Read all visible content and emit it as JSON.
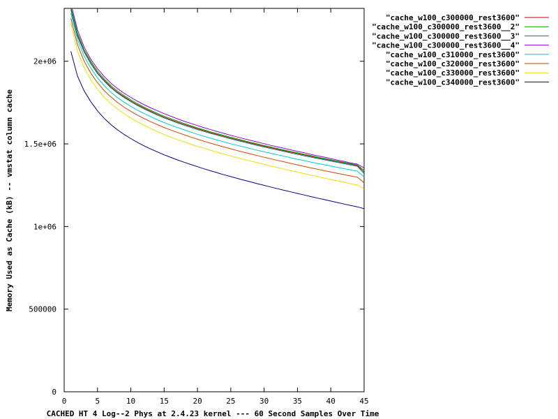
{
  "chart_data": {
    "type": "line",
    "title": "",
    "xlabel": "CACHED HT 4 Log--2 Phys at 2.4.23 kernel --- 60 Second Samples Over Time",
    "ylabel": "Memory Used as Cache (kB) -- vmstat column cache",
    "xlim": [
      0,
      45
    ],
    "ylim": [
      0,
      2320000
    ],
    "x_ticks": [
      0,
      5,
      10,
      15,
      20,
      25,
      30,
      35,
      40,
      45
    ],
    "x_tick_labels": [
      "0",
      "5",
      "10",
      "15",
      "20",
      "25",
      "30",
      "35",
      "40",
      "45"
    ],
    "y_ticks": [
      0,
      500000,
      1000000,
      1500000,
      2000000
    ],
    "y_tick_labels": [
      "0",
      "500000",
      "1e+06",
      "1.5e+06",
      "2e+06"
    ],
    "grid": false,
    "legend_position": "top-right outside",
    "x": [
      1,
      2,
      3,
      4,
      5,
      6,
      7,
      8,
      9,
      10,
      11,
      12,
      13,
      14,
      15,
      16,
      17,
      18,
      19,
      20,
      21,
      22,
      23,
      24,
      25,
      26,
      27,
      28,
      29,
      30,
      31,
      32,
      33,
      34,
      35,
      36,
      37,
      38,
      39,
      40,
      41,
      42,
      43,
      44,
      45
    ],
    "series": [
      {
        "name": "\"cache_w100_c300000_rest3600\"",
        "color": "#cc0000",
        "values": [
          2320000,
          2160000,
          2060000,
          1990000,
          1930000,
          1885000,
          1845000,
          1812000,
          1785000,
          1760000,
          1737000,
          1716000,
          1697000,
          1679000,
          1662000,
          1647000,
          1632000,
          1618000,
          1605000,
          1592000,
          1580000,
          1568000,
          1557000,
          1546000,
          1535000,
          1525000,
          1515000,
          1505000,
          1495000,
          1486000,
          1477000,
          1468000,
          1459000,
          1450000,
          1442000,
          1433000,
          1425000,
          1417000,
          1409000,
          1401000,
          1393000,
          1385000,
          1377000,
          1369000,
          1330000
        ]
      },
      {
        "name": "\"cache_w100_c300000_rest3600__2\"",
        "color": "#00aa00",
        "values": [
          2330000,
          2170000,
          2070000,
          2000000,
          1940000,
          1893000,
          1853000,
          1820000,
          1792000,
          1767000,
          1744000,
          1722000,
          1703000,
          1685000,
          1668000,
          1653000,
          1638000,
          1624000,
          1610000,
          1597000,
          1585000,
          1573000,
          1562000,
          1551000,
          1540000,
          1530000,
          1519000,
          1509000,
          1500000,
          1490000,
          1481000,
          1472000,
          1463000,
          1454000,
          1446000,
          1437000,
          1429000,
          1420000,
          1412000,
          1404000,
          1396000,
          1388000,
          1380000,
          1372000,
          1340000
        ]
      },
      {
        "name": "\"cache_w100_c300000_rest3600__3\"",
        "color": "#008080",
        "values": [
          2310000,
          2150000,
          2055000,
          1985000,
          1925000,
          1880000,
          1840000,
          1808000,
          1780000,
          1755000,
          1732000,
          1711000,
          1692000,
          1674000,
          1657000,
          1642000,
          1627000,
          1613000,
          1600000,
          1587000,
          1575000,
          1563000,
          1552000,
          1541000,
          1530000,
          1520000,
          1510000,
          1500000,
          1490000,
          1481000,
          1472000,
          1463000,
          1454000,
          1445000,
          1437000,
          1428000,
          1420000,
          1412000,
          1404000,
          1396000,
          1388000,
          1380000,
          1372000,
          1364000,
          1320000
        ]
      },
      {
        "name": "\"cache_w100_c300000_rest3600__4\"",
        "color": "#9400d3",
        "values": [
          2350000,
          2190000,
          2085000,
          2012000,
          1955000,
          1908000,
          1868000,
          1835000,
          1806000,
          1781000,
          1758000,
          1737000,
          1718000,
          1700000,
          1683000,
          1667000,
          1652000,
          1637000,
          1624000,
          1611000,
          1598000,
          1586000,
          1574000,
          1563000,
          1552000,
          1541000,
          1531000,
          1521000,
          1511000,
          1501000,
          1491000,
          1482000,
          1473000,
          1464000,
          1455000,
          1446000,
          1437000,
          1428000,
          1420000,
          1411000,
          1402000,
          1394000,
          1385000,
          1377000,
          1355000
        ]
      },
      {
        "name": "\"cache_w100_c310000_rest3600\"",
        "color": "#00cccc",
        "values": [
          2290000,
          2130000,
          2030000,
          1958000,
          1900000,
          1853000,
          1813000,
          1780000,
          1752000,
          1727000,
          1704000,
          1683000,
          1664000,
          1646000,
          1629000,
          1614000,
          1599000,
          1585000,
          1571000,
          1558000,
          1546000,
          1534000,
          1523000,
          1512000,
          1501000,
          1491000,
          1481000,
          1471000,
          1461000,
          1452000,
          1443000,
          1434000,
          1425000,
          1416000,
          1407000,
          1399000,
          1390000,
          1382000,
          1374000,
          1366000,
          1358000,
          1350000,
          1342000,
          1334000,
          1300000
        ]
      },
      {
        "name": "\"cache_w100_c320000_rest3600\"",
        "color": "#cc4400",
        "values": [
          2260000,
          2100000,
          2000000,
          1928000,
          1870000,
          1823000,
          1784000,
          1751000,
          1722000,
          1697000,
          1674000,
          1653000,
          1634000,
          1616000,
          1599000,
          1584000,
          1569000,
          1555000,
          1541000,
          1528000,
          1516000,
          1504000,
          1492000,
          1481000,
          1470000,
          1459000,
          1449000,
          1439000,
          1429000,
          1419000,
          1410000,
          1400000,
          1391000,
          1382000,
          1373000,
          1364000,
          1355000,
          1347000,
          1338000,
          1330000,
          1322000,
          1314000,
          1306000,
          1298000,
          1265000
        ]
      },
      {
        "name": "\"cache_w100_c330000_rest3600\"",
        "color": "#eedd00",
        "values": [
          2230000,
          2060000,
          1960000,
          1888000,
          1830000,
          1783000,
          1744000,
          1711000,
          1682000,
          1656000,
          1633000,
          1612000,
          1592000,
          1574000,
          1557000,
          1541000,
          1526000,
          1512000,
          1498000,
          1485000,
          1473000,
          1461000,
          1449000,
          1438000,
          1427000,
          1416000,
          1406000,
          1396000,
          1386000,
          1376000,
          1366000,
          1357000,
          1347000,
          1338000,
          1329000,
          1320000,
          1311000,
          1302000,
          1293000,
          1285000,
          1276000,
          1268000,
          1259000,
          1251000,
          1228000
        ]
      },
      {
        "name": "\"cache_w100_c340000_rest3600\"",
        "color": "#000080",
        "values": [
          2060000,
          1910000,
          1820000,
          1755000,
          1700000,
          1655000,
          1617000,
          1585000,
          1557000,
          1532000,
          1509000,
          1488000,
          1469000,
          1451000,
          1434000,
          1418000,
          1403000,
          1389000,
          1375000,
          1362000,
          1349000,
          1337000,
          1325000,
          1313000,
          1302000,
          1291000,
          1280000,
          1270000,
          1259000,
          1249000,
          1239000,
          1229000,
          1219000,
          1210000,
          1200000,
          1191000,
          1181000,
          1172000,
          1163000,
          1154000,
          1145000,
          1136000,
          1127000,
          1119000,
          1108000
        ]
      }
    ]
  }
}
